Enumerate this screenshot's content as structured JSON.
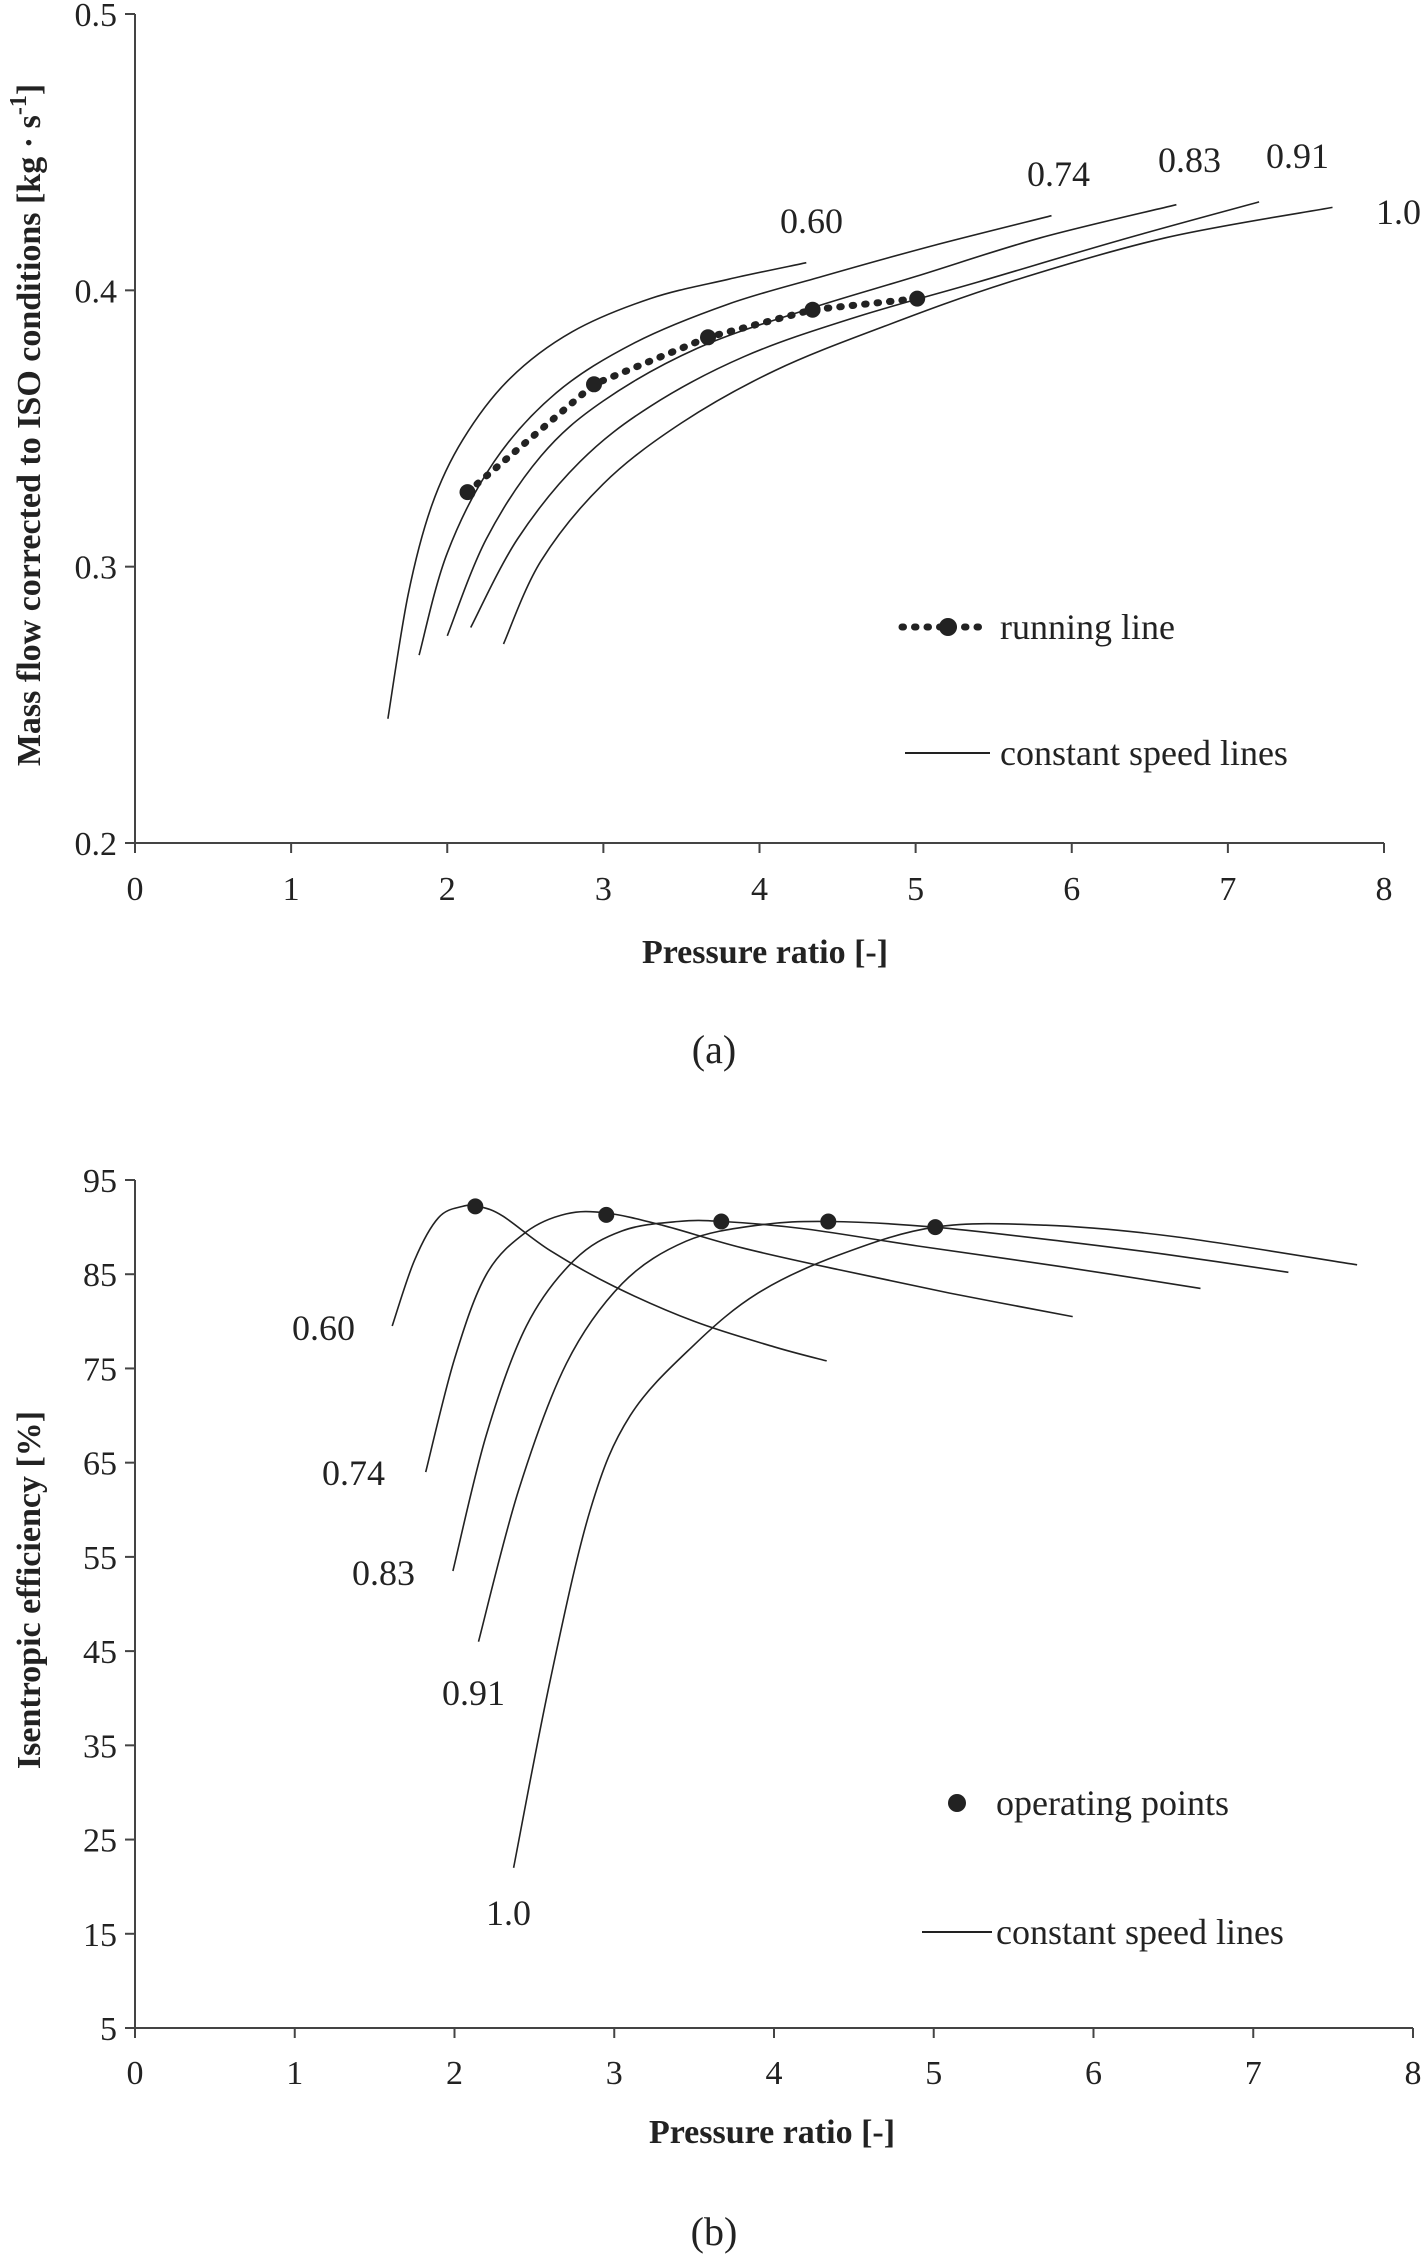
{
  "chart_data": [
    {
      "type": "line",
      "panel_label": "(a)",
      "ylabel": "Mass flow corrected to ISO conditions [kg · s-1]",
      "ylabel_parts": {
        "base": "Mass flow corrected to ISO conditions [kg · s",
        "sup": "-1",
        "end": "]"
      },
      "xlabel": "Pressure ratio [-]",
      "xlim": [
        0,
        8
      ],
      "ylim": [
        0.2,
        0.5
      ],
      "xticks": [
        "0",
        "1",
        "2",
        "3",
        "4",
        "5",
        "6",
        "7",
        "8"
      ],
      "yticks": [
        "0.2",
        "0.3",
        "0.4",
        "0.5"
      ],
      "legend": [
        {
          "label": "running line",
          "style": "dotted-with-marker"
        },
        {
          "label": "constant speed lines",
          "style": "solid"
        }
      ],
      "series": [
        {
          "name": "0.60",
          "label": "0.60",
          "x": [
            1.62,
            1.75,
            1.9,
            2.1,
            2.4,
            2.8,
            3.3,
            3.8,
            4.3
          ],
          "y": [
            0.245,
            0.29,
            0.322,
            0.346,
            0.368,
            0.385,
            0.397,
            0.404,
            0.41
          ]
        },
        {
          "name": "0.74",
          "label": "0.74",
          "x": [
            1.82,
            2.0,
            2.3,
            2.7,
            3.2,
            3.8,
            4.4,
            5.1,
            5.87
          ],
          "y": [
            0.268,
            0.305,
            0.338,
            0.363,
            0.381,
            0.395,
            0.405,
            0.416,
            0.427
          ]
        },
        {
          "name": "0.83",
          "label": "0.83",
          "x": [
            2.0,
            2.25,
            2.6,
            3.0,
            3.6,
            4.3,
            5.0,
            5.8,
            6.67
          ],
          "y": [
            0.275,
            0.31,
            0.34,
            0.36,
            0.379,
            0.393,
            0.405,
            0.419,
            0.431
          ]
        },
        {
          "name": "0.91",
          "label": "0.91",
          "x": [
            2.15,
            2.45,
            2.85,
            3.3,
            3.9,
            4.6,
            5.4,
            6.3,
            7.2
          ],
          "y": [
            0.278,
            0.31,
            0.338,
            0.358,
            0.376,
            0.39,
            0.403,
            0.418,
            0.432
          ]
        },
        {
          "name": "1.0",
          "label": "1.0",
          "x": [
            2.36,
            2.6,
            3.0,
            3.5,
            4.1,
            4.8,
            5.6,
            6.6,
            7.67
          ],
          "y": [
            0.272,
            0.302,
            0.33,
            0.352,
            0.371,
            0.387,
            0.403,
            0.419,
            0.43
          ]
        },
        {
          "name": "running line",
          "x": [
            2.13,
            2.94,
            3.67,
            4.34,
            5.01
          ],
          "y": [
            0.327,
            0.366,
            0.383,
            0.393,
            0.397
          ],
          "markers": true
        }
      ]
    },
    {
      "type": "line",
      "panel_label": "(b)",
      "ylabel": "Isentropic efficiency [%]",
      "xlabel": "Pressure ratio [-]",
      "xlim": [
        0,
        8
      ],
      "ylim": [
        5,
        95
      ],
      "xticks": [
        "0",
        "1",
        "2",
        "3",
        "4",
        "5",
        "6",
        "7",
        "8"
      ],
      "yticks": [
        "5",
        "15",
        "25",
        "35",
        "45",
        "55",
        "65",
        "75",
        "85",
        "95"
      ],
      "legend": [
        {
          "label": "operating points",
          "style": "marker"
        },
        {
          "label": "constant speed lines",
          "style": "solid"
        }
      ],
      "series": [
        {
          "name": "0.60",
          "label": "0.60",
          "x": [
            1.61,
            1.75,
            1.9,
            2.05,
            2.15,
            2.3,
            2.6,
            3.0,
            3.5,
            4.0,
            4.33
          ],
          "y": [
            79.5,
            86.5,
            91.0,
            92.2,
            92.2,
            91.2,
            87.5,
            83.7,
            80.0,
            77.3,
            75.8
          ]
        },
        {
          "name": "0.74",
          "label": "0.74",
          "x": [
            1.82,
            2.0,
            2.2,
            2.45,
            2.7,
            2.95,
            3.3,
            3.8,
            4.4,
            5.1,
            5.87
          ],
          "y": [
            64.0,
            76.0,
            85.0,
            89.5,
            91.4,
            91.5,
            90.2,
            87.8,
            85.5,
            83.0,
            80.5
          ]
        },
        {
          "name": "0.83",
          "label": "0.83",
          "x": [
            1.99,
            2.2,
            2.45,
            2.75,
            3.05,
            3.4,
            3.68,
            4.2,
            4.9,
            5.8,
            6.67
          ],
          "y": [
            53.5,
            68.0,
            79.5,
            86.5,
            89.6,
            90.6,
            90.6,
            89.8,
            88.0,
            85.8,
            83.5
          ]
        },
        {
          "name": "0.91",
          "label": "0.91",
          "x": [
            2.15,
            2.4,
            2.7,
            3.05,
            3.45,
            3.9,
            4.35,
            5.0,
            5.8,
            6.5,
            7.22
          ],
          "y": [
            46.0,
            62.0,
            75.5,
            84.0,
            88.5,
            90.2,
            90.6,
            90.0,
            88.5,
            87.0,
            85.2
          ]
        },
        {
          "name": "1.0",
          "label": "1.0",
          "x": [
            2.37,
            2.6,
            2.85,
            3.1,
            3.5,
            3.9,
            4.4,
            5.01,
            5.7,
            6.5,
            7.65
          ],
          "y": [
            22.0,
            42.0,
            60.0,
            70.0,
            77.5,
            83.0,
            87.0,
            90.0,
            90.2,
            89.0,
            86.0
          ]
        },
        {
          "name": "operating points",
          "x": [
            2.13,
            2.95,
            3.67,
            4.34,
            5.01
          ],
          "y": [
            92.2,
            91.3,
            90.6,
            90.6,
            90.0
          ],
          "markers": true,
          "line": false
        }
      ]
    }
  ]
}
